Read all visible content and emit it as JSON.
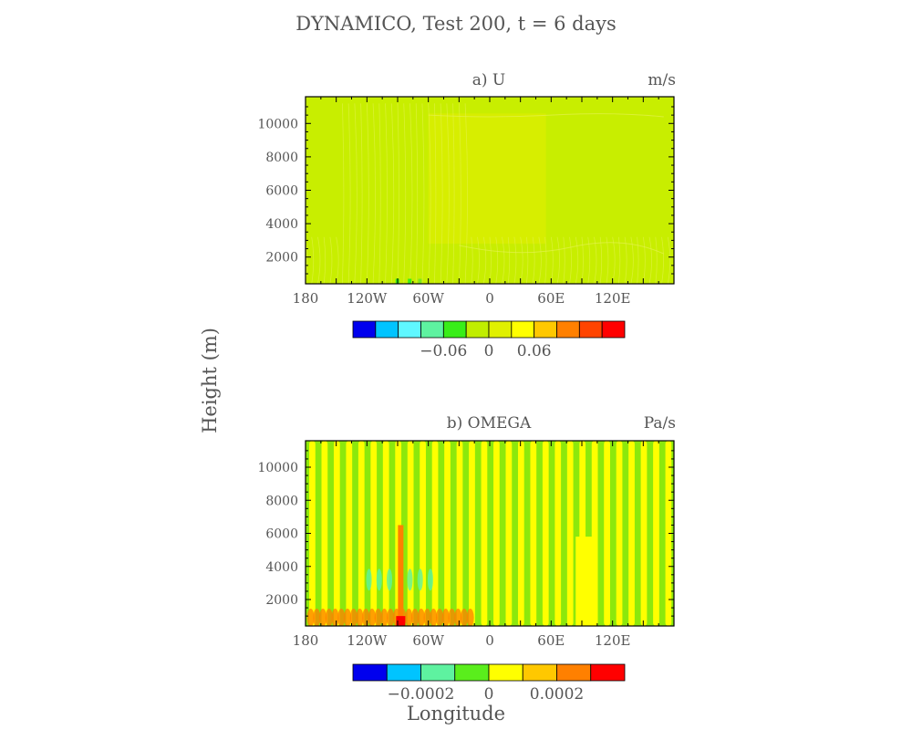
{
  "figure": {
    "title": "DYNAMICO, Test 200, t = 6 days",
    "ylabel": "Height (m)",
    "xlabel": "Longitude"
  },
  "chart_data": [
    {
      "type": "heatmap",
      "panel_label": "a) U",
      "units": "m/s",
      "xticks": [
        "180",
        "120W",
        "60W",
        "0",
        "60E",
        "120E"
      ],
      "yticks": [
        2000,
        4000,
        6000,
        8000,
        10000
      ],
      "xlim": [
        -180,
        180
      ],
      "ylim": [
        400,
        11600
      ],
      "colorbar": {
        "labels": [
          "-0.06",
          "0",
          "0.06"
        ],
        "colors": [
          "#0000ee",
          "#00c4ff",
          "#5ff7ff",
          "#5ef2a0",
          "#38ee18",
          "#c0ee00",
          "#e0f000",
          "#ffff00",
          "#ffc800",
          "#ff8000",
          "#ff4400",
          "#ff0000"
        ]
      },
      "field": {
        "base_color": "#c8ee00",
        "upper_band_color": "#d7ee00",
        "lower_band_color": "#b8ea18",
        "notes": "near-uniform field, small oscillations in lower 3000 m and upper band"
      }
    },
    {
      "type": "heatmap",
      "panel_label": "b) OMEGA",
      "units": "Pa/s",
      "xticks": [
        "180",
        "120W",
        "60W",
        "0",
        "60E",
        "120E"
      ],
      "yticks": [
        2000,
        4000,
        6000,
        8000,
        10000
      ],
      "xlim": [
        -180,
        180
      ],
      "ylim": [
        400,
        11600
      ],
      "colorbar": {
        "labels": [
          "-0.0002",
          "0",
          "0.0002"
        ],
        "colors": [
          "#0000ee",
          "#00c4ff",
          "#5ef2a0",
          "#5aee1c",
          "#ffff00",
          "#ffc800",
          "#ff8000",
          "#ff0000"
        ]
      },
      "field": {
        "stripe_count": 30,
        "stripe_colors": [
          "#8ce80c",
          "#ffff00"
        ],
        "hotspot_lon": -87,
        "hotspot_colors": [
          "#ff8000",
          "#ff0000"
        ],
        "cold_column_color": "#5ef2a0"
      }
    }
  ]
}
